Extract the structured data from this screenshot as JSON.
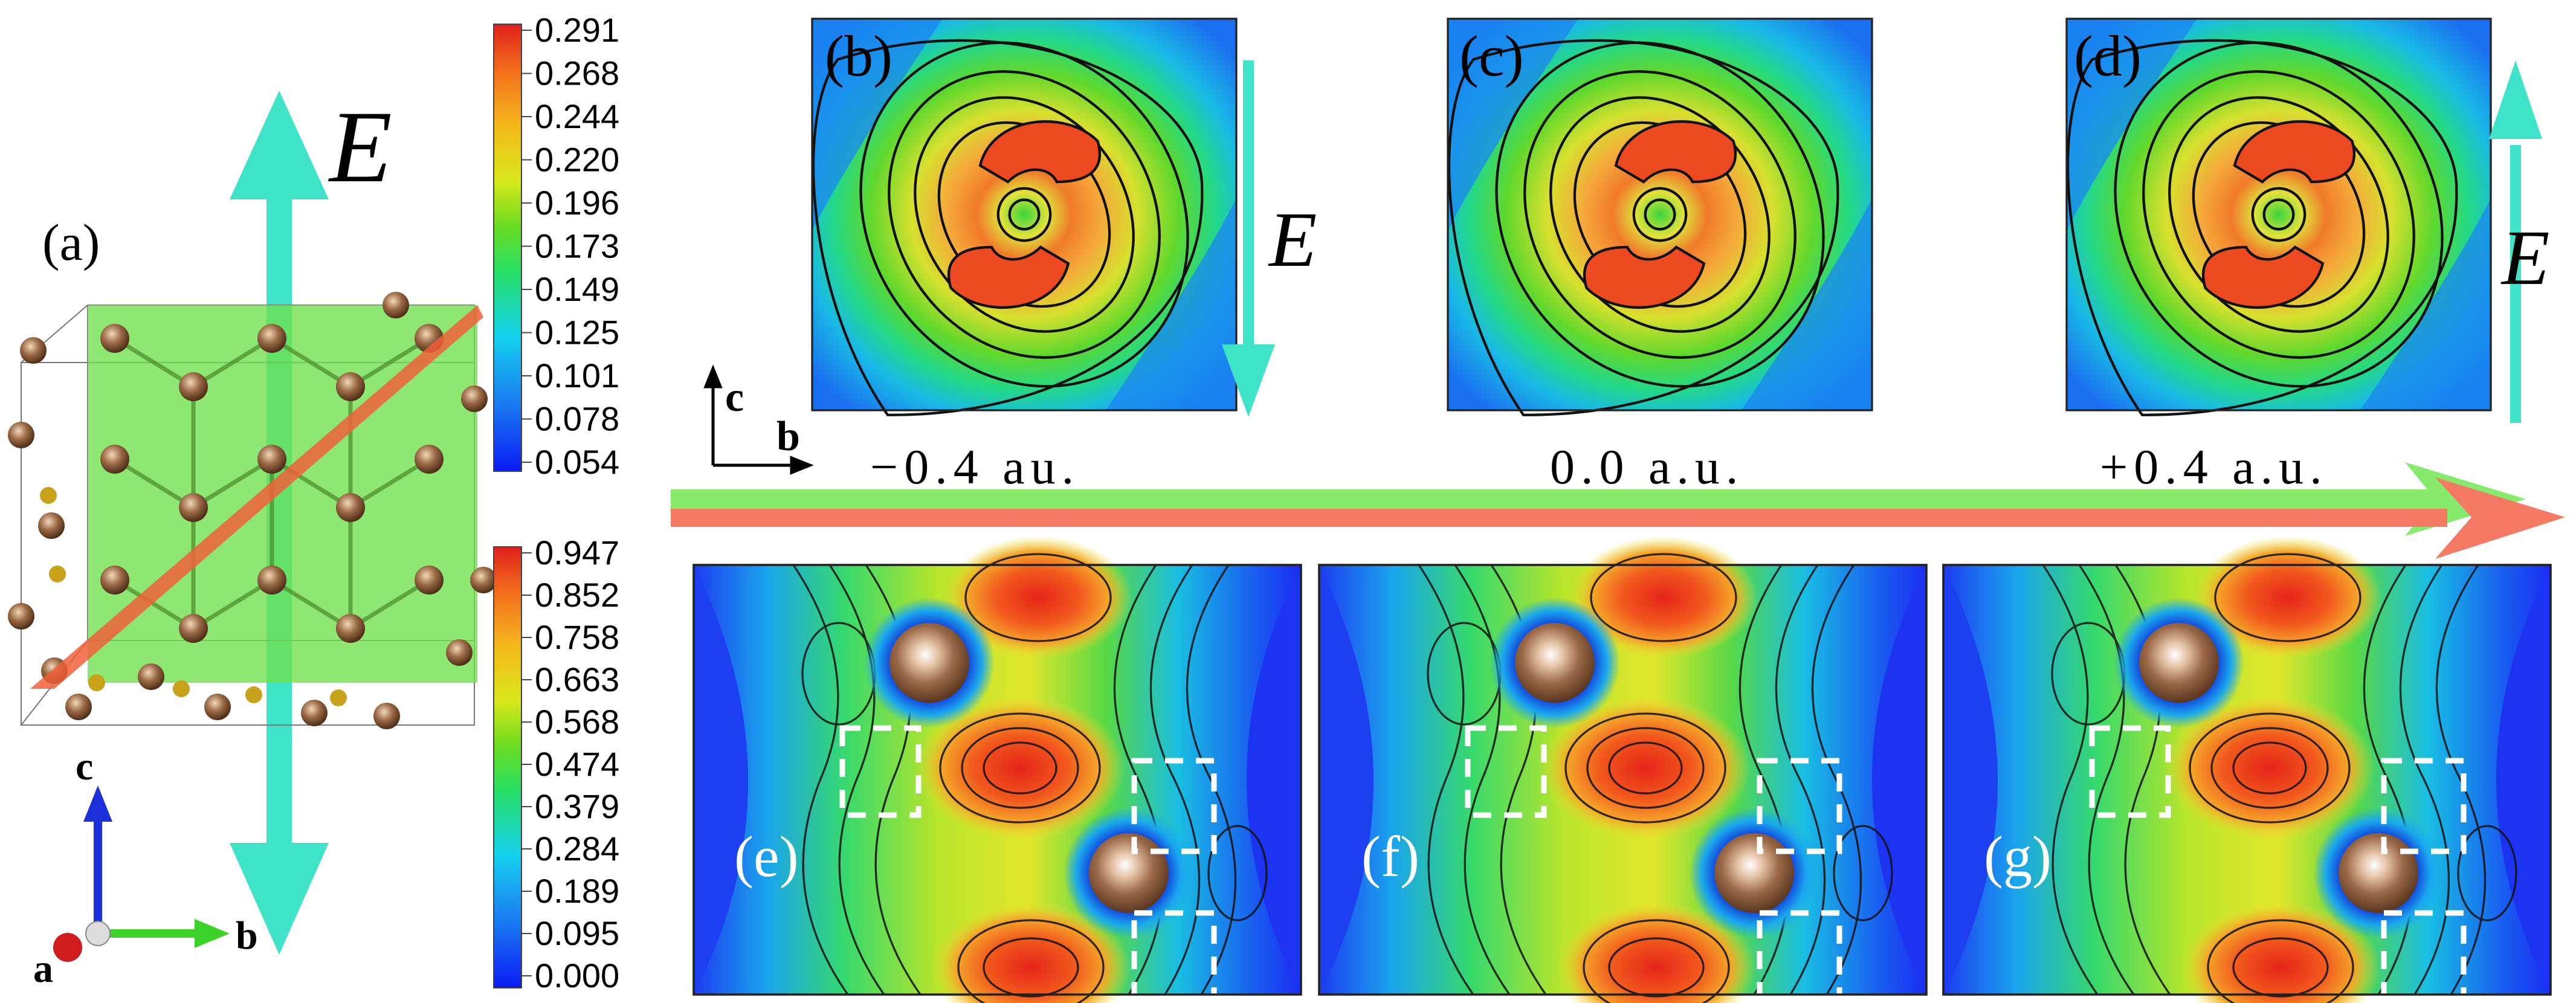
{
  "panel_labels": {
    "a": "(a)",
    "b": "(b)",
    "c": "(c)",
    "d": "(d)",
    "e": "(e)",
    "f": "(f)",
    "g": "(g)"
  },
  "field_symbol": "E",
  "field_values": [
    "−0.4 au.",
    "0.0 a.u.",
    "+0.4 a.u."
  ],
  "axes_small": {
    "vertical": "c",
    "horizontal": "b"
  },
  "axes_crystal": {
    "a": "a",
    "b": "b",
    "c": "c"
  },
  "colorbar_top": {
    "ticks": [
      "0.291",
      "0.268",
      "0.244",
      "0.220",
      "0.196",
      "0.173",
      "0.149",
      "0.125",
      "0.101",
      "0.078",
      "0.054"
    ]
  },
  "colorbar_bottom": {
    "ticks": [
      "0.947",
      "0.852",
      "0.758",
      "0.663",
      "0.568",
      "0.474",
      "0.379",
      "0.284",
      "0.189",
      "0.095",
      "0.000"
    ]
  },
  "colors": {
    "field_arrow": "#3fe3c8",
    "green_arrow": "#86ea6c",
    "red_arrow": "#f47a63",
    "green_plane": "#6ee04a",
    "red_plane": "#f0603a",
    "atom": "#8a5a3a",
    "dash_box": "#ffffff"
  }
}
